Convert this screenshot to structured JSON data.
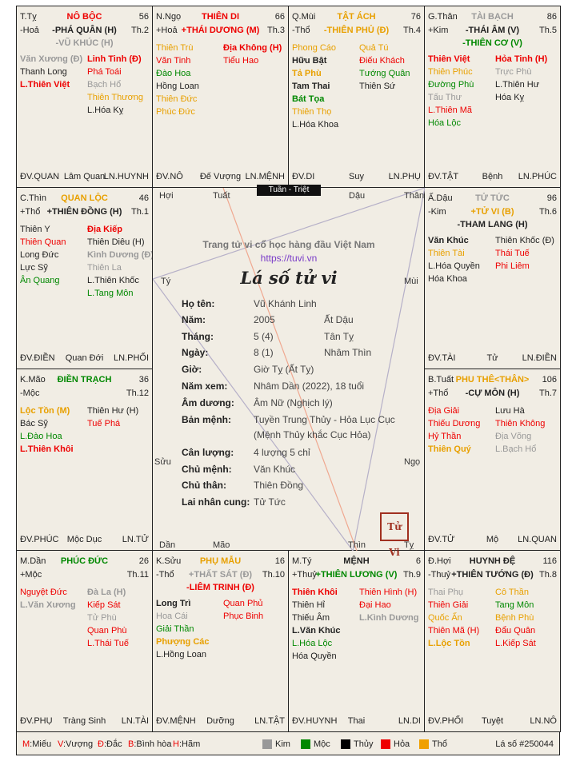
{
  "palaces": {
    "ty": {
      "name_tl": "T.Tỵ",
      "palace": "NÔ BỘC",
      "num": "56",
      "element": "-Hoả",
      "main_star": "-PHÁ QUÂN (H)",
      "trang": "Th.2",
      "main_star2": "-VŨ KHÚC (H)",
      "left": [
        [
          "Văn Xương (Đ)",
          "#999",
          true
        ],
        [
          "Thanh Long",
          "#222",
          false
        ],
        [
          "L.Thiên Việt",
          "#e00",
          true
        ]
      ],
      "right": [
        [
          "Linh Tinh (Đ)",
          "#e00",
          true
        ],
        [
          "Phá Toái",
          "#e00",
          false
        ],
        [
          "Bạch Hổ",
          "#999",
          false
        ],
        [
          "Thiên Thương",
          "#e8a000",
          false
        ],
        [
          "L.Hóa Kỵ",
          "#222",
          false
        ]
      ],
      "dv": "ĐV.QUAN",
      "stage": "Lâm Quan",
      "ln": "LN.HUYNH"
    },
    "ngo": {
      "name_tl": "N.Ngọ",
      "palace": "THIÊN DI",
      "num": "66",
      "element": "+Hoả",
      "main_star": "+THÁI DƯƠNG (M)",
      "trang": "Th.3",
      "left": [
        [
          "Thiên Trù",
          "#e8a000",
          false
        ],
        [
          "Văn Tinh",
          "#e00",
          false
        ],
        [
          "Đào Hoa",
          "#080",
          false
        ],
        [
          "Hồng Loan",
          "#222",
          false
        ],
        [
          "Thiên Đức",
          "#e8a000",
          false
        ],
        [
          "Phúc Đức",
          "#e8a000",
          false
        ]
      ],
      "right": [
        [
          "Địa Không (H)",
          "#e00",
          true
        ],
        [
          "Tiểu Hao",
          "#e00",
          false
        ]
      ],
      "dv": "ĐV.NÔ",
      "stage": "Đế Vượng",
      "ln": "LN.MỆNH"
    },
    "mui": {
      "name_tl": "Q.Mùi",
      "palace": "TẬT ÁCH",
      "num": "76",
      "element": "-Thổ",
      "main_star": "-THIÊN PHỦ (Đ)",
      "trang": "Th.4",
      "left": [
        [
          "Phong Cáo",
          "#e8a000",
          false
        ],
        [
          "Hữu Bật",
          "#222",
          true
        ],
        [
          "Tả Phù",
          "#e8a000",
          true
        ],
        [
          "Tam Thai",
          "#222",
          true
        ],
        [
          "Bát Tọa",
          "#080",
          true
        ],
        [
          "Thiên Thọ",
          "#e8a000",
          false
        ],
        [
          "L.Hóa Khoa",
          "#222",
          false
        ]
      ],
      "right": [
        [
          "Quả Tú",
          "#e8a000",
          false
        ],
        [
          "Điếu Khách",
          "#e00",
          false
        ],
        [
          "Tướng Quân",
          "#080",
          false
        ],
        [
          "Thiên Sứ",
          "#222",
          false
        ]
      ],
      "dv": "ĐV.DI",
      "stage": "Suy",
      "ln": "LN.PHỤ"
    },
    "than": {
      "name_tl": "G.Thân",
      "palace": "TÀI BẠCH",
      "num": "86",
      "element": "+Kim",
      "main_star": "-THÁI ÂM (V)",
      "trang": "Th.5",
      "main_star2": "-THIÊN CƠ (V)",
      "left": [
        [
          "Thiên Việt",
          "#e00",
          true
        ],
        [
          "Thiên Phúc",
          "#e8a000",
          false
        ],
        [
          "Đường Phù",
          "#080",
          false
        ],
        [
          "Tấu Thư",
          "#999",
          false
        ],
        [
          "L.Thiên Mã",
          "#e00",
          false
        ],
        [
          "Hóa Lộc",
          "#080",
          false
        ]
      ],
      "right": [
        [
          "Hỏa Tinh (H)",
          "#e00",
          true
        ],
        [
          "Trực Phù",
          "#999",
          false
        ],
        [
          "L.Thiên Hư",
          "#222",
          false
        ],
        [
          "Hóa Kỵ",
          "#222",
          false
        ]
      ],
      "dv": "ĐV.TẬT",
      "stage": "Bệnh",
      "ln": "LN.PHÚC"
    },
    "thin": {
      "name_tl": "C.Thìn",
      "palace": "QUAN LỘC",
      "num": "46",
      "element": "+Thổ",
      "main_star": "+THIÊN ĐỒNG (H)",
      "trang": "Th.1",
      "left": [
        [
          "Thiên Y",
          "#222",
          false
        ],
        [
          "Thiên Quan",
          "#e00",
          false
        ],
        [
          "Long Đức",
          "#222",
          false
        ],
        [
          "Lực Sỹ",
          "#222",
          false
        ],
        [
          "Ân Quang",
          "#080",
          false
        ]
      ],
      "right": [
        [
          "Địa Kiếp",
          "#e00",
          true
        ],
        [
          "Thiên Diêu (H)",
          "#222",
          false
        ],
        [
          "Kình Dương (Đ)",
          "#999",
          true
        ],
        [
          "Thiên La",
          "#999",
          false
        ],
        [
          "L.Thiên Khốc",
          "#222",
          false
        ],
        [
          "L.Tang Môn",
          "#080",
          false
        ]
      ],
      "dv": "ĐV.ĐIỀN",
      "stage": "Quan Đới",
      "ln": "LN.PHỐI"
    },
    "dau": {
      "name_tl": "Ấ.Dậu",
      "palace": "TỬ TỨC",
      "num": "96",
      "element": "-Kim",
      "main_star": "+TỬ VI (B)",
      "trang": "Th.6",
      "main_star2": "-THAM LANG (H)",
      "left": [
        [
          "Văn Khúc",
          "#222",
          true
        ],
        [
          "Thiên Tài",
          "#e8a000",
          false
        ],
        [
          "L.Hóa Quyền",
          "#222",
          false
        ],
        [
          "Hóa Khoa",
          "#222",
          false
        ]
      ],
      "right": [
        [
          "Thiên Khốc (Đ)",
          "#222",
          false
        ],
        [
          "Thái Tuế",
          "#e00",
          false
        ],
        [
          "Phi Liêm",
          "#e00",
          false
        ]
      ],
      "dv": "ĐV.TÀI",
      "stage": "Tử",
      "ln": "LN.ĐIỀN"
    },
    "mao": {
      "name_tl": "K.Mão",
      "palace": "ĐIỀN TRẠCH",
      "num": "36",
      "element": "-Mộc",
      "main_star": "",
      "trang": "Th.12",
      "left": [
        [
          "Lộc Tồn (M)",
          "#e8a000",
          true
        ],
        [
          "Bác Sỹ",
          "#222",
          false
        ],
        [
          "L.Đào Hoa",
          "#080",
          false
        ],
        [
          "L.Thiên Khôi",
          "#e00",
          true
        ]
      ],
      "right": [
        [
          "Thiên Hư (H)",
          "#222",
          false
        ],
        [
          "Tuế Phá",
          "#e00",
          false
        ]
      ],
      "dv": "ĐV.PHÚC",
      "stage": "Mộc Dục",
      "ln": "LN.TỬ"
    },
    "tuat": {
      "name_tl": "B.Tuất",
      "palace": "PHU THÊ<THÂN>",
      "num": "106",
      "element": "+Thổ",
      "main_star": "-CỰ MÔN (H)",
      "trang": "Th.7",
      "left": [
        [
          "Địa Giải",
          "#e00",
          false
        ],
        [
          "Thiếu Dương",
          "#e00",
          false
        ],
        [
          "Hỷ Thần",
          "#e00",
          false
        ],
        [
          "Thiên Quý",
          "#e8a000",
          true
        ]
      ],
      "right": [
        [
          "Lưu Hà",
          "#222",
          false
        ],
        [
          "Thiên Không",
          "#e00",
          false
        ],
        [
          "Địa Võng",
          "#999",
          false
        ],
        [
          "L.Bạch Hổ",
          "#999",
          false
        ]
      ],
      "dv": "ĐV.TỬ",
      "stage": "Mộ",
      "ln": "LN.QUAN"
    },
    "dan": {
      "name_tl": "M.Dần",
      "palace": "PHÚC ĐỨC",
      "num": "26",
      "element": "+Mộc",
      "main_star": "",
      "trang": "Th.11",
      "left": [
        [
          "Nguyệt Đức",
          "#e00",
          false
        ],
        [
          "L.Văn Xương",
          "#999",
          true
        ]
      ],
      "right": [
        [
          "Đà La (H)",
          "#999",
          true
        ],
        [
          "Kiếp Sát",
          "#e00",
          false
        ],
        [
          "Tử Phù",
          "#999",
          false
        ],
        [
          "Quan Phù",
          "#e00",
          false
        ],
        [
          "L.Thái Tuế",
          "#e00",
          false
        ]
      ],
      "dv": "ĐV.PHỤ",
      "stage": "Tràng Sinh",
      "ln": "LN.TÀI"
    },
    "suu": {
      "name_tl": "K.Sửu",
      "palace": "PHỤ MẪU",
      "num": "16",
      "element": "-Thổ",
      "main_star": "+THẤT SÁT (Đ)",
      "trang": "Th.10",
      "main_star2": "-LIÊM TRINH (Đ)",
      "left": [
        [
          "Long Trì",
          "#222",
          true
        ],
        [
          "Hoa Cái",
          "#999",
          false
        ],
        [
          "Giải Thần",
          "#080",
          false
        ],
        [
          "Phượng Các",
          "#e8a000",
          true
        ],
        [
          "L.Hồng Loan",
          "#222",
          false
        ]
      ],
      "right": [
        [
          "Quan Phủ",
          "#e00",
          false
        ],
        [
          "Phục Binh",
          "#e00",
          false
        ]
      ],
      "dv": "ĐV.MỆNH",
      "stage": "Dưỡng",
      "ln": "LN.TẬT"
    },
    "ty2": {
      "name_tl": "M.Tý",
      "palace": "MỆNH",
      "num": "6",
      "element": "+Thuỷ",
      "main_star": "+THIÊN LƯƠNG (V)",
      "trang": "Th.9",
      "left": [
        [
          "Thiên Khôi",
          "#e00",
          true
        ],
        [
          "Thiên Hỉ",
          "#222",
          false
        ],
        [
          "Thiếu Âm",
          "#222",
          false
        ],
        [
          "L.Văn Khúc",
          "#222",
          true
        ],
        [
          "L.Hóa Lộc",
          "#080",
          false
        ],
        [
          "Hóa Quyền",
          "#222",
          false
        ]
      ],
      "right": [
        [
          "Thiên Hình (H)",
          "#e00",
          false
        ],
        [
          "Đại Hao",
          "#e00",
          false
        ],
        [
          "L.Kình Dương",
          "#999",
          true
        ]
      ],
      "dv": "ĐV.HUYNH",
      "stage": "Thai",
      "ln": "LN.DI"
    },
    "hoi": {
      "name_tl": "Đ.Hợi",
      "palace": "HUYNH ĐỆ",
      "num": "116",
      "element": "-Thuỷ",
      "main_star": "+THIÊN TƯỚNG (Đ)",
      "trang": "Th.8",
      "left": [
        [
          "Thai Phụ",
          "#999",
          false
        ],
        [
          "Thiên Giải",
          "#e00",
          false
        ],
        [
          "Quốc Ấn",
          "#e8a000",
          false
        ],
        [
          "Thiên Mã (H)",
          "#e00",
          false
        ],
        [
          "L.Lộc Tồn",
          "#e8a000",
          true
        ]
      ],
      "right": [
        [
          "Cô Thần",
          "#e8a000",
          false
        ],
        [
          "Tang Môn",
          "#080",
          false
        ],
        [
          "Bệnh Phù",
          "#e8a000",
          false
        ],
        [
          "Đẩu Quân",
          "#e00",
          false
        ],
        [
          "L.Kiếp Sát",
          "#e00",
          false
        ]
      ],
      "dv": "ĐV.PHỐI",
      "stage": "Tuyệt",
      "ln": "LN.NÔ"
    }
  },
  "palace_colors": {
    "ty": "#e00",
    "ngo": "#e00",
    "mui": "#e8a000",
    "than": "#999",
    "thin": "#e8a000",
    "dau": "#999",
    "mao": "#080",
    "tuat": "#e8a000",
    "dan": "#080",
    "suu": "#e8a000",
    "ty2": "#222",
    "hoi": "#222"
  },
  "main_colors": {
    "ty": "#222",
    "ngo": "#e00",
    "mui": "#e8a000",
    "than": "#222",
    "thin": "#222",
    "dau": "#e8a000",
    "mao": "#222",
    "tuat": "#222",
    "dan": "#222",
    "suu": "#999",
    "ty2": "#080",
    "hoi": "#222"
  },
  "main2_colors": {
    "ty": "#999",
    "than": "#080",
    "dau": "#222",
    "suu": "#e00"
  },
  "tuan_triet": "Tuần - Triệt",
  "center": {
    "site_title": "Trang tử vi cổ học hàng đầu Việt Nam",
    "site_url": "https://tuvi.vn",
    "heading": "Lá số tử vi",
    "labels": {
      "hoi": "Hợi",
      "tuat": "Tuất",
      "dau": "Dậu",
      "than": "Thân",
      "ty": "Tý",
      "mui": "Mùi",
      "suu": "Sửu",
      "ngo": "Ngọ",
      "dan": "Dần",
      "mao": "Mão",
      "thin": "Thìn",
      "ty2": "Tỵ"
    },
    "info": [
      [
        "Họ tên:",
        "Vũ Khánh Linh",
        ""
      ],
      [
        "Năm:",
        "2005",
        "Ất Dậu"
      ],
      [
        "Tháng:",
        "5 (4)",
        "Tân Tỵ"
      ],
      [
        "Ngày:",
        "8 (1)",
        "Nhâm Thìn"
      ],
      [
        "Giờ:",
        "Giờ Tỵ (Ất Tỵ)",
        ""
      ],
      [
        "Năm xem:",
        "Nhâm Dần (2022), 18 tuổi",
        ""
      ],
      [
        "Âm dương:",
        "Âm Nữ (Nghịch lý)",
        ""
      ],
      [
        "Bản mệnh:",
        "Tuyền Trung Thủy - Hỏa Lục Cục",
        ""
      ],
      [
        "",
        "(Mệnh Thủy khắc Cục Hỏa)",
        ""
      ],
      [
        "Cân lượng:",
        "4 lượng 5 chỉ",
        ""
      ],
      [
        "Chủ mệnh:",
        "Văn Khúc",
        ""
      ],
      [
        "Chủ thân:",
        "Thiên Đồng",
        ""
      ],
      [
        "Lai nhân cung:",
        "Tử Tức",
        ""
      ]
    ],
    "seal_text": "Tử Vi"
  },
  "footer": {
    "legend": [
      [
        "M",
        "Miếu"
      ],
      [
        "V",
        "Vượng"
      ],
      [
        "Đ",
        "Đắc"
      ],
      [
        "B",
        "Bình hòa"
      ],
      [
        "H",
        "Hãm"
      ]
    ],
    "elements": [
      [
        "Kim",
        "#999"
      ],
      [
        "Mộc",
        "#080"
      ],
      [
        "Thủy",
        "#000"
      ],
      [
        "Hỏa",
        "#e00"
      ],
      [
        "Thổ",
        "#f0a000"
      ]
    ],
    "chart_id": "Lá số #250044"
  }
}
